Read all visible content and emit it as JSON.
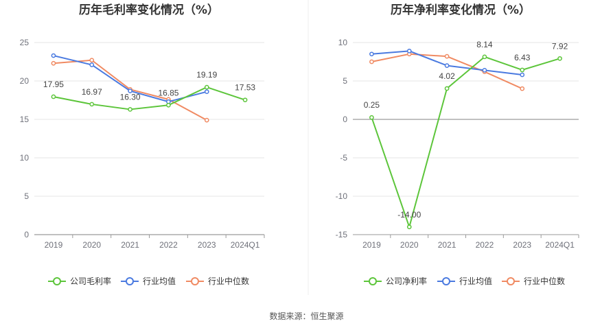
{
  "source": "数据来源：恒生聚源",
  "colors": {
    "company": "#5cc53a",
    "avg": "#4a7ae0",
    "median": "#f08a62"
  },
  "chart_data": [
    {
      "type": "line",
      "title": "历年毛利率变化情况（%）",
      "categories": [
        "2019",
        "2020",
        "2021",
        "2022",
        "2023",
        "2024Q1"
      ],
      "ylim": [
        0,
        25
      ],
      "yticks": [
        0,
        5,
        10,
        15,
        20,
        25
      ],
      "grid": true,
      "legend": "bottom",
      "series": [
        {
          "name": "公司毛利率",
          "key": "company",
          "values": [
            17.95,
            16.97,
            16.3,
            16.85,
            19.19,
            17.53
          ],
          "labels": [
            "17.95",
            "16.97",
            "16.30",
            "16.85",
            "19.19",
            "17.53"
          ]
        },
        {
          "name": "行业均值",
          "key": "avg",
          "values": [
            23.3,
            22.1,
            18.7,
            17.3,
            18.6,
            null
          ]
        },
        {
          "name": "行业中位数",
          "key": "median",
          "values": [
            22.3,
            22.7,
            18.9,
            17.6,
            14.9,
            null
          ]
        }
      ]
    },
    {
      "type": "line",
      "title": "历年净利率变化情况（%）",
      "categories": [
        "2019",
        "2020",
        "2021",
        "2022",
        "2023",
        "2024Q1"
      ],
      "ylim": [
        -15,
        10
      ],
      "yticks": [
        -15,
        -10,
        -5,
        0,
        5,
        10
      ],
      "grid": true,
      "legend": "bottom",
      "series": [
        {
          "name": "公司净利率",
          "key": "company",
          "values": [
            0.25,
            -14.0,
            4.02,
            8.14,
            6.43,
            7.92
          ],
          "labels": [
            "0.25",
            "-14.00",
            "4.02",
            "8.14",
            "6.43",
            "7.92"
          ]
        },
        {
          "name": "行业均值",
          "key": "avg",
          "values": [
            8.5,
            8.9,
            7.0,
            6.4,
            5.8,
            null
          ]
        },
        {
          "name": "行业中位数",
          "key": "median",
          "values": [
            7.5,
            8.5,
            8.2,
            6.2,
            4.0,
            null
          ]
        }
      ]
    }
  ]
}
